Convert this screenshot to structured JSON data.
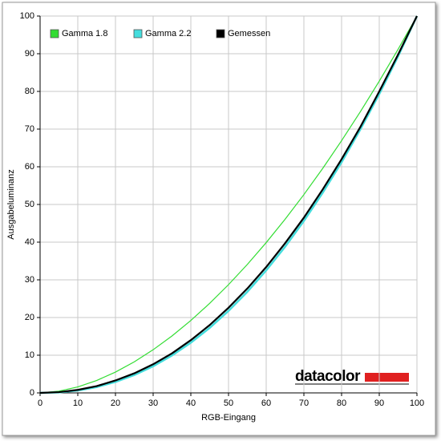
{
  "chart_data": {
    "type": "line",
    "x_label": "RGB-Eingang",
    "y_label": "Ausgabeluminanz",
    "watermark": "datacolor",
    "x": [
      0,
      5,
      10,
      15,
      20,
      25,
      30,
      35,
      40,
      45,
      50,
      55,
      60,
      65,
      70,
      75,
      80,
      85,
      90,
      95,
      100
    ],
    "series": [
      {
        "name": "Gamma 1.8",
        "color": "#33dd33",
        "values": [
          0,
          0.46,
          1.58,
          3.29,
          5.52,
          8.25,
          11.45,
          15.11,
          19.22,
          23.76,
          28.72,
          34.09,
          39.88,
          46.06,
          52.62,
          59.58,
          66.92,
          74.64,
          82.72,
          91.18,
          100
        ]
      },
      {
        "name": "Gamma 2.2",
        "color": "#44dddd",
        "values": [
          0,
          0.14,
          0.63,
          1.54,
          2.9,
          4.74,
          7.07,
          9.93,
          13.32,
          17.26,
          21.76,
          26.84,
          32.5,
          38.76,
          45.62,
          53.11,
          61.21,
          69.94,
          79.31,
          89.33,
          100
        ]
      },
      {
        "name": "Gemessen",
        "color": "#000000",
        "values": [
          0,
          0.2,
          0.8,
          1.8,
          3.3,
          5.2,
          7.6,
          10.5,
          14,
          18,
          22.6,
          27.7,
          33.4,
          39.7,
          46.5,
          54,
          62,
          70.6,
          80,
          89.8,
          100
        ]
      }
    ],
    "xlim": [
      0,
      100
    ],
    "ylim": [
      0,
      100
    ],
    "xticks": [
      0,
      10,
      20,
      30,
      40,
      50,
      60,
      70,
      80,
      90,
      100
    ],
    "yticks": [
      0,
      10,
      20,
      30,
      40,
      50,
      60,
      70,
      80,
      90,
      100
    ],
    "grid": true,
    "legend": "top-left"
  }
}
